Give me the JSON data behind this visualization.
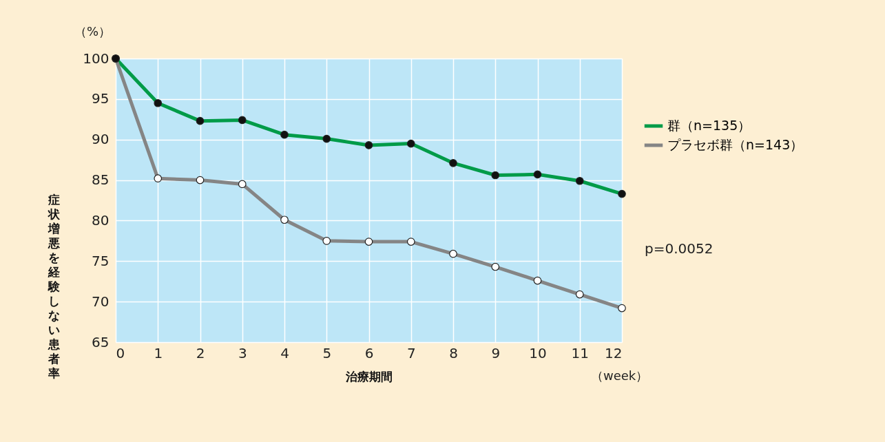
{
  "chart_data": {
    "type": "line",
    "xlabel": "治療期間",
    "ylabel": "症状増悪を経験しない患者率",
    "x": [
      0,
      1,
      2,
      3,
      4,
      5,
      6,
      7,
      8,
      9,
      10,
      11,
      12
    ],
    "series": [
      {
        "name": "群（n=135）",
        "color": "#009b48",
        "values": [
          100,
          94.5,
          92.3,
          92.4,
          90.6,
          90.1,
          89.3,
          89.5,
          87.1,
          85.6,
          85.7,
          84.9,
          83.3
        ]
      },
      {
        "name": "プラセボ群（n=143）",
        "color": "#858585",
        "values": [
          100,
          85.2,
          85.0,
          84.5,
          80.1,
          77.5,
          77.4,
          77.4,
          75.9,
          74.3,
          72.6,
          70.9,
          69.2
        ]
      }
    ],
    "xlim": [
      0,
      12
    ],
    "xticks": [
      0,
      1,
      2,
      3,
      4,
      5,
      6,
      7,
      8,
      9,
      10,
      11,
      12
    ],
    "ylim": [
      65,
      100
    ],
    "yticks": [
      65,
      70,
      75,
      80,
      85,
      90,
      95,
      100
    ],
    "grid": true,
    "legend": "right",
    "marker": "circle",
    "annotations": [
      "（%）",
      "（week）",
      "p=0.0052"
    ]
  }
}
